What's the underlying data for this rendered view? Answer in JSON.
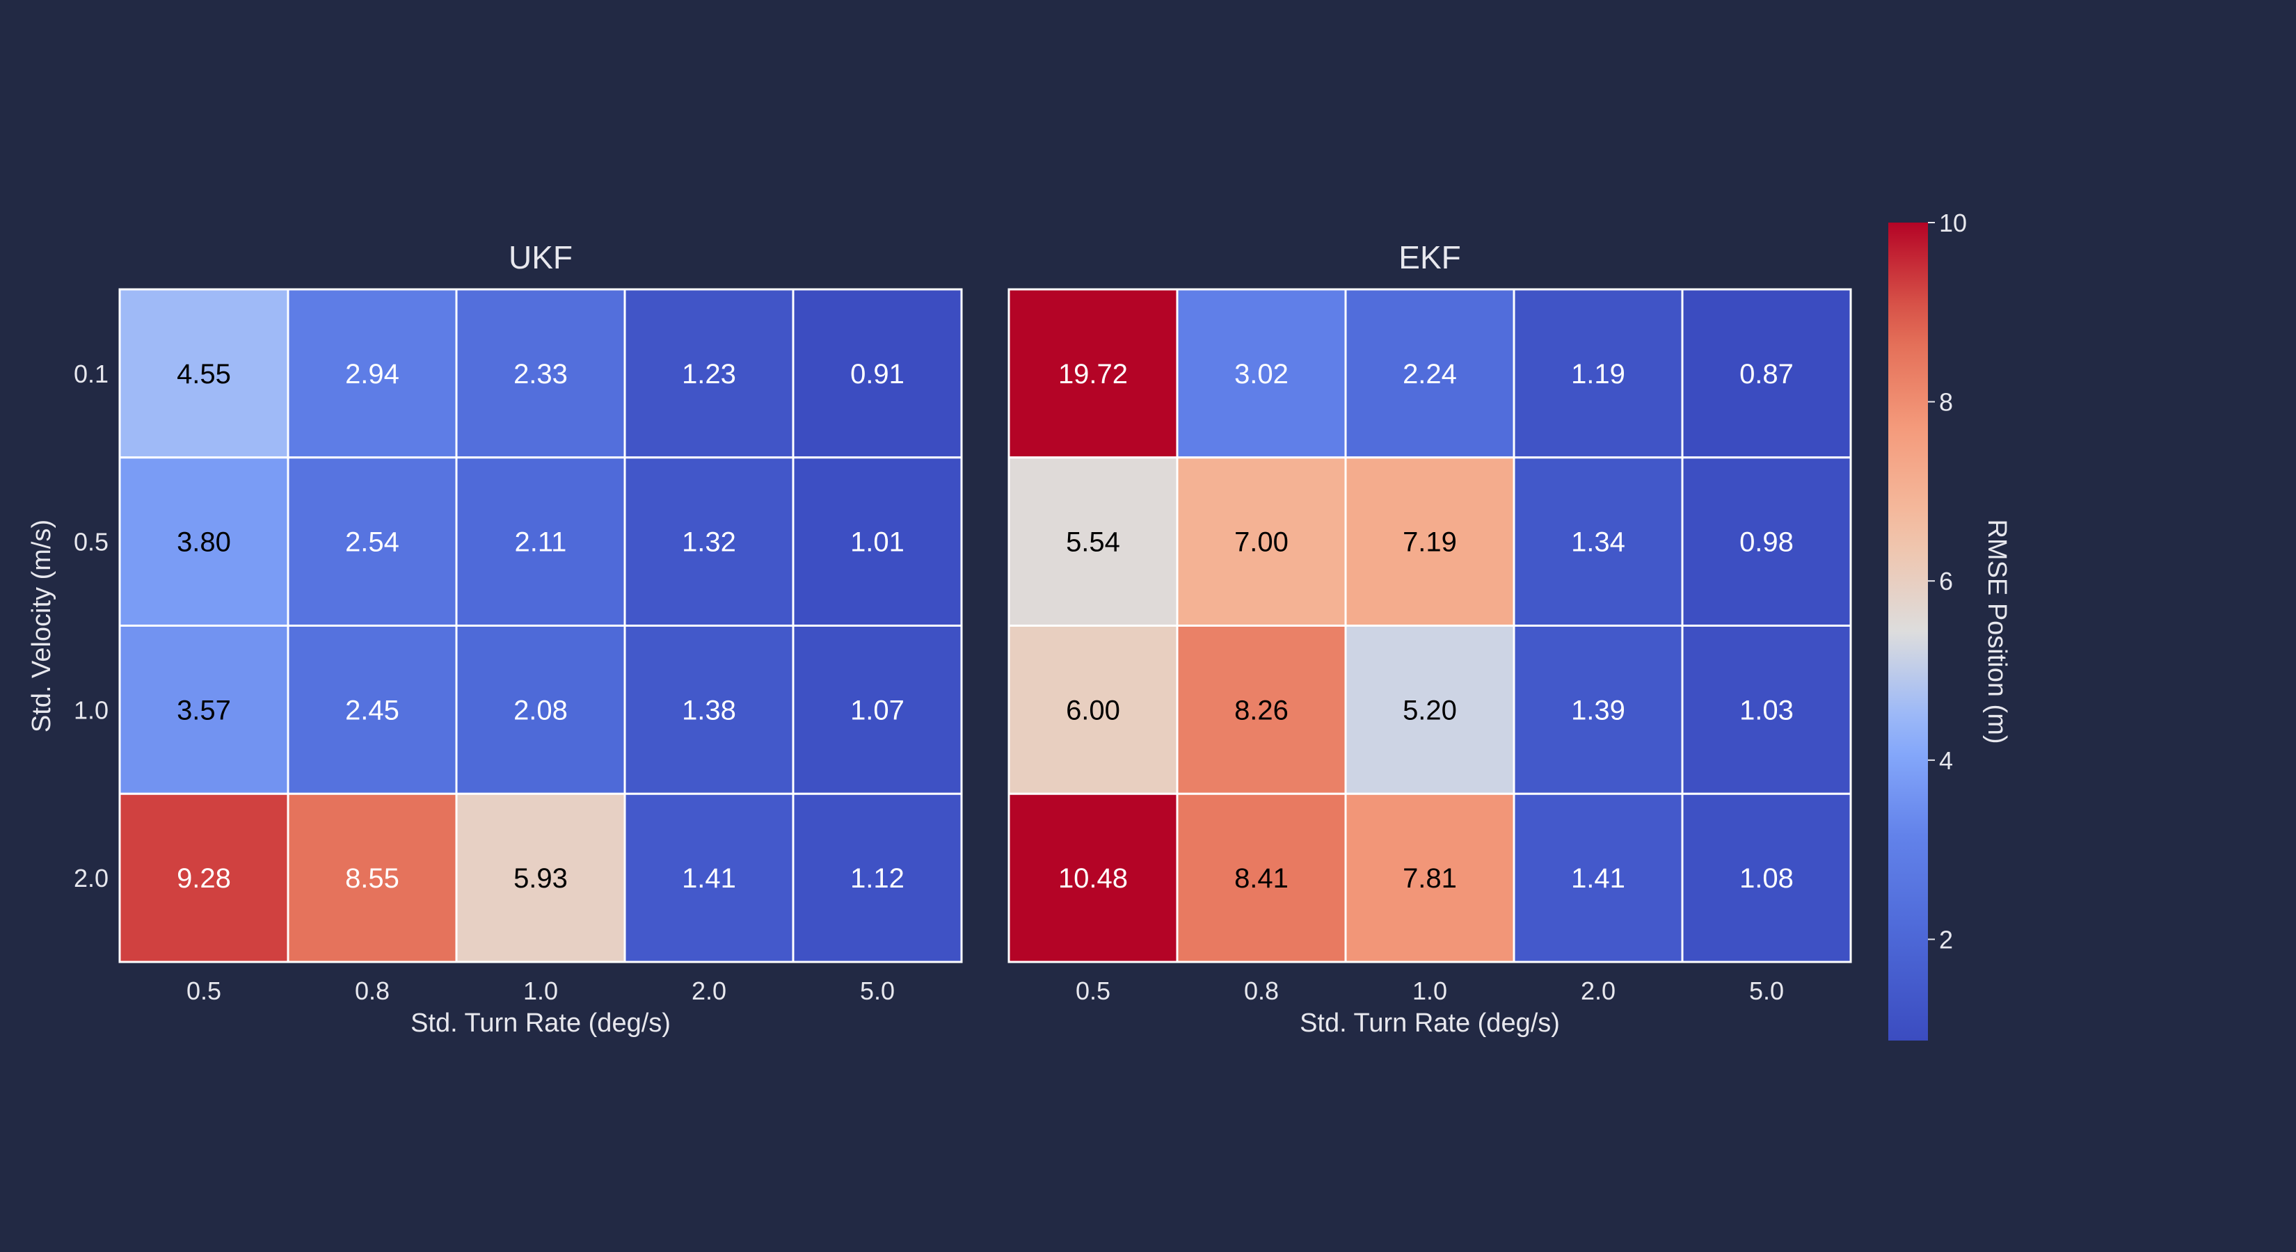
{
  "chart_data": {
    "type": "heatmap",
    "panels": [
      {
        "title": "UKF",
        "xlabel": "Std. Turn Rate (deg/s)",
        "ylabel": "Std. Velocity (m/s)",
        "x_categories": [
          "0.5",
          "0.8",
          "1.0",
          "2.0",
          "5.0"
        ],
        "y_categories": [
          "0.1",
          "0.5",
          "1.0",
          "2.0"
        ],
        "values": [
          [
            4.55,
            2.94,
            2.33,
            1.23,
            0.91
          ],
          [
            3.8,
            2.54,
            2.11,
            1.32,
            1.01
          ],
          [
            3.57,
            2.45,
            2.08,
            1.38,
            1.07
          ],
          [
            9.28,
            8.55,
            5.93,
            1.41,
            1.12
          ]
        ]
      },
      {
        "title": "EKF",
        "xlabel": "Std. Turn Rate (deg/s)",
        "ylabel": "",
        "x_categories": [
          "0.5",
          "0.8",
          "1.0",
          "2.0",
          "5.0"
        ],
        "y_categories": [
          "0.1",
          "0.5",
          "1.0",
          "2.0"
        ],
        "values": [
          [
            19.72,
            3.02,
            2.24,
            1.19,
            0.87
          ],
          [
            5.54,
            7.0,
            7.19,
            1.34,
            0.98
          ],
          [
            6.0,
            8.26,
            5.2,
            1.39,
            1.03
          ],
          [
            10.48,
            8.41,
            7.81,
            1.41,
            1.08
          ]
        ]
      }
    ],
    "value_format_decimals": 2,
    "colormap": "coolwarm",
    "color_range": [
      0.87,
      10
    ],
    "colorbar": {
      "label": "RMSE Position (m)",
      "ticks": [
        2,
        4,
        6,
        8,
        10
      ]
    },
    "colors": {
      "background": "#222944",
      "text": "#e8e8ee",
      "cell_border": "#ffffff",
      "annotation_dark": "#000000",
      "annotation_light": "#ffffff"
    }
  }
}
